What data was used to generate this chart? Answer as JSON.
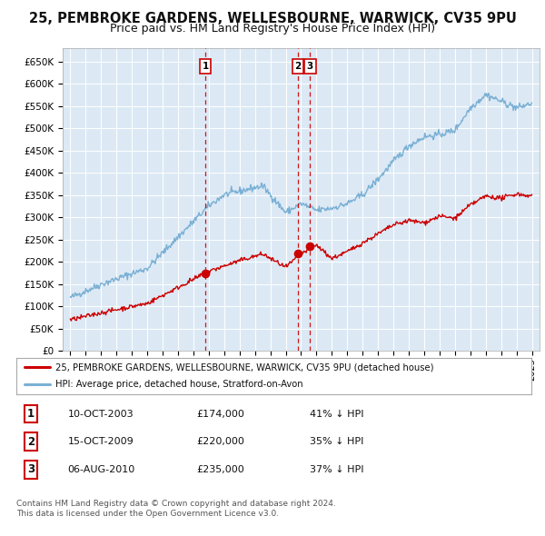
{
  "title": "25, PEMBROKE GARDENS, WELLESBOURNE, WARWICK, CV35 9PU",
  "subtitle": "Price paid vs. HM Land Registry's House Price Index (HPI)",
  "title_fontsize": 10.5,
  "subtitle_fontsize": 9,
  "ylabel_ticks": [
    "£0",
    "£50K",
    "£100K",
    "£150K",
    "£200K",
    "£250K",
    "£300K",
    "£350K",
    "£400K",
    "£450K",
    "£500K",
    "£550K",
    "£600K",
    "£650K"
  ],
  "ytick_values": [
    0,
    50000,
    100000,
    150000,
    200000,
    250000,
    300000,
    350000,
    400000,
    450000,
    500000,
    550000,
    600000,
    650000
  ],
  "ylim": [
    0,
    680000
  ],
  "xlim_left": 1994.5,
  "xlim_right": 2025.5,
  "background_color": "#dce9f5",
  "grid_color": "#ffffff",
  "red_line_color": "#cc0000",
  "blue_line_color": "#7ab0d4",
  "sale_marker_color": "#cc0000",
  "vline_color": "#cc0000",
  "transactions": [
    {
      "label": "1",
      "date_x": 2003.78,
      "price": 174000,
      "hpi_label": "41% ↓ HPI",
      "date_str": "10-OCT-2003"
    },
    {
      "label": "2",
      "date_x": 2009.78,
      "price": 220000,
      "hpi_label": "35% ↓ HPI",
      "date_str": "15-OCT-2009"
    },
    {
      "label": "3",
      "date_x": 2010.58,
      "price": 235000,
      "hpi_label": "37% ↓ HPI",
      "date_str": "06-AUG-2010"
    }
  ],
  "legend_label_red": "25, PEMBROKE GARDENS, WELLESBOURNE, WARWICK, CV35 9PU (detached house)",
  "legend_label_blue": "HPI: Average price, detached house, Stratford-on-Avon",
  "footer_line1": "Contains HM Land Registry data © Crown copyright and database right 2024.",
  "footer_line2": "This data is licensed under the Open Government Licence v3.0."
}
